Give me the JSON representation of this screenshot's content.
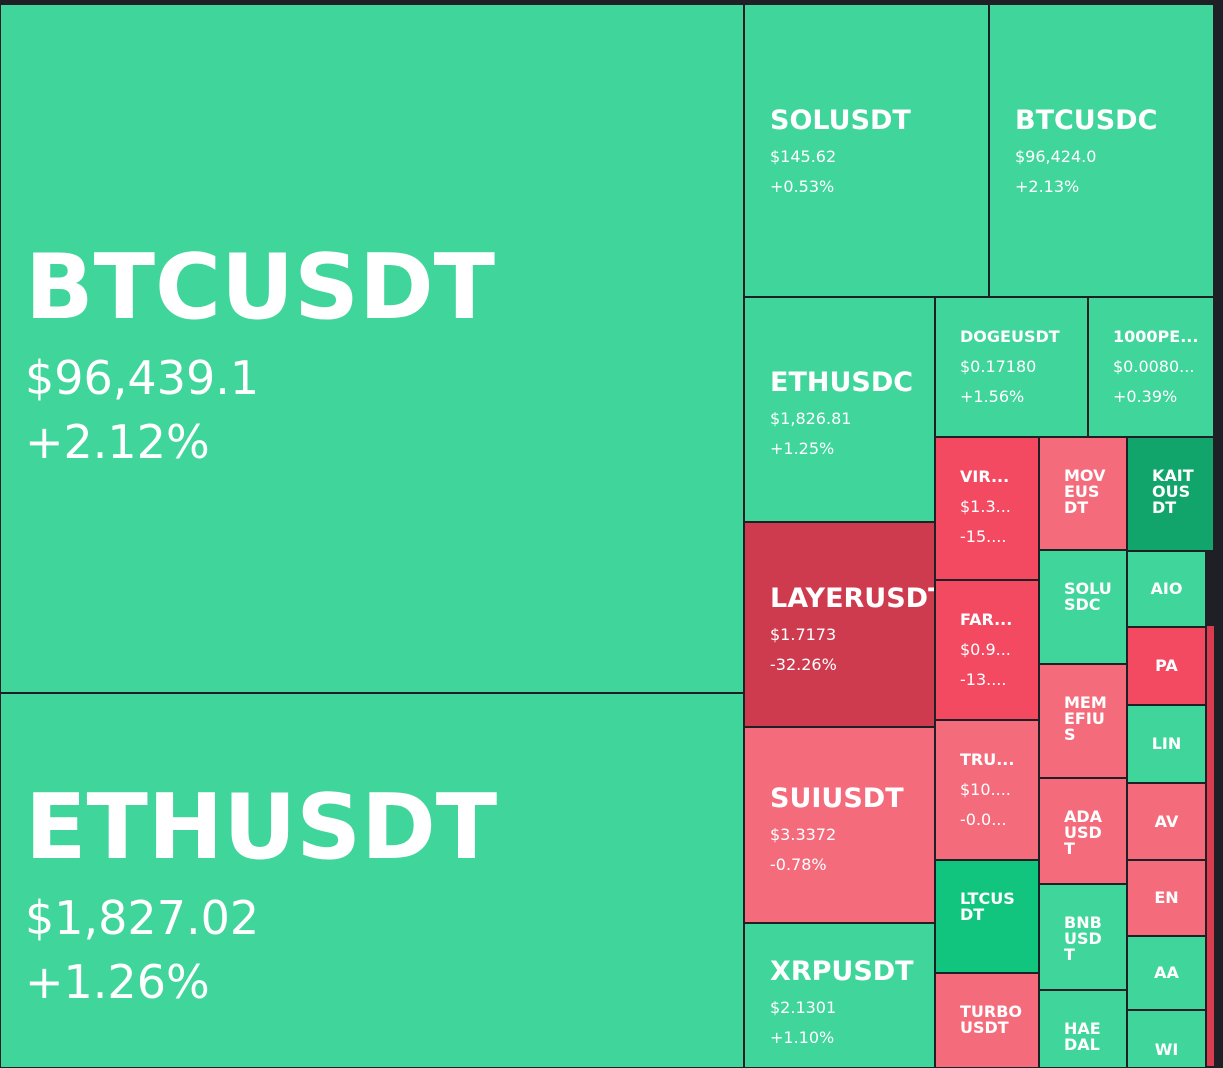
{
  "colors": {
    "up_light": "#40d59b",
    "up_strong": "#12c57f",
    "up_dark": "#11a46b",
    "down_light": "#f46c7c",
    "down_mid": "#f34a62",
    "down_strong": "#cf3b4e",
    "background": "#1e2026"
  },
  "tiles": [
    {
      "symbol": "BTCUSDT",
      "price": "$96,439.1",
      "change": "+2.12%",
      "color": "#40d59b"
    },
    {
      "symbol": "ETHUSDT",
      "price": "$1,827.02",
      "change": "+1.26%",
      "color": "#40d59b"
    },
    {
      "symbol": "SOLUSDT",
      "price": "$145.62",
      "change": "+0.53%",
      "color": "#40d59b"
    },
    {
      "symbol": "BTCUSDC",
      "price": "$96,424.0",
      "change": "+2.13%",
      "color": "#40d59b"
    },
    {
      "symbol": "ETHUSDC",
      "price": "$1,826.81",
      "change": "+1.25%",
      "color": "#40d59b"
    },
    {
      "symbol": "DOGEUSDT",
      "price": "$0.17180",
      "change": "+1.56%",
      "color": "#40d59b"
    },
    {
      "symbol": "1000PE...",
      "price": "$0.0080...",
      "change": "+0.39%",
      "color": "#40d59b"
    },
    {
      "symbol": "LAYERUSDT",
      "price": "$1.7173",
      "change": "-32.26%",
      "color": "#cf3b4e"
    },
    {
      "symbol": "SUIUSDT",
      "price": "$3.3372",
      "change": "-0.78%",
      "color": "#f46c7c"
    },
    {
      "symbol": "XRPUSDT",
      "price": "$2.1301",
      "change": "+1.10%",
      "color": "#40d59b"
    },
    {
      "symbol": "VIR...",
      "price": "$1.3...",
      "change": "-15....",
      "color": "#f34a62"
    },
    {
      "symbol": "FAR...",
      "price": "$0.9...",
      "change": "-13....",
      "color": "#f34a62"
    },
    {
      "symbol": "TRU...",
      "price": "$10....",
      "change": "-0.0...",
      "color": "#f46c7c"
    },
    {
      "symbol": "LTCUSDT",
      "price": "",
      "change": "",
      "color": "#12c57f"
    },
    {
      "symbol": "TURBOUSDT",
      "price": "",
      "change": "",
      "color": "#f46c7c"
    },
    {
      "symbol": "MOVEUSDT",
      "price": "",
      "change": "",
      "color": "#f46c7c"
    },
    {
      "symbol": "SOLUSDC",
      "price": "",
      "change": "",
      "color": "#40d59b"
    },
    {
      "symbol": "MEMEFIUS",
      "price": "",
      "change": "",
      "color": "#f46c7c"
    },
    {
      "symbol": "ADAUSDT",
      "price": "",
      "change": "",
      "color": "#f46c7c"
    },
    {
      "symbol": "BNBUSDT",
      "price": "",
      "change": "",
      "color": "#40d59b"
    },
    {
      "symbol": "HAEDAL",
      "price": "",
      "change": "",
      "color": "#40d59b"
    },
    {
      "symbol": "KAITOUSDT",
      "price": "",
      "change": "",
      "color": "#11a46b"
    },
    {
      "symbol": "AIO",
      "price": "",
      "change": "",
      "color": "#40d59b"
    },
    {
      "symbol": "PA",
      "price": "",
      "change": "",
      "color": "#f34a62"
    },
    {
      "symbol": "LIN",
      "price": "",
      "change": "",
      "color": "#40d59b"
    },
    {
      "symbol": "AV",
      "price": "",
      "change": "",
      "color": "#f46c7c"
    },
    {
      "symbol": "EN",
      "price": "",
      "change": "",
      "color": "#f46c7c"
    },
    {
      "symbol": "AA",
      "price": "",
      "change": "",
      "color": "#40d59b"
    },
    {
      "symbol": "WI",
      "price": "",
      "change": "",
      "color": "#40d59b"
    }
  ]
}
